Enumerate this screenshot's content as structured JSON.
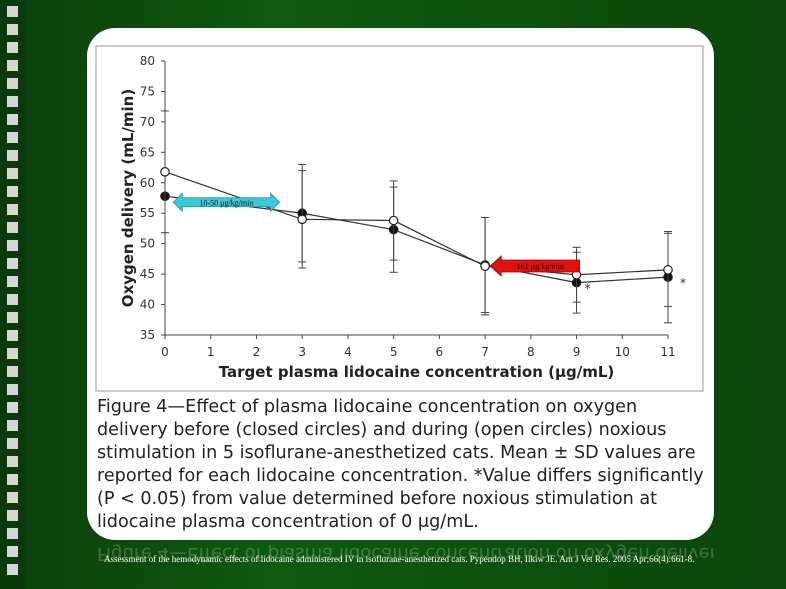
{
  "chart_data": {
    "type": "line",
    "xlabel": "Target plasma lidocaine concentration (μg/mL)",
    "ylabel": "Oxygen delivery (mL/min)",
    "xlim": [
      0,
      11
    ],
    "ylim": [
      35,
      80
    ],
    "x_ticks": [
      "0",
      "1",
      "2",
      "3",
      "4",
      "5",
      "6",
      "7",
      "8",
      "9",
      "10",
      "11"
    ],
    "y_ticks": [
      "35",
      "40",
      "45",
      "50",
      "55",
      "60",
      "65",
      "70",
      "75",
      "80"
    ],
    "x": [
      0,
      3,
      5,
      7,
      9,
      11
    ],
    "series": [
      {
        "name": "closed circles",
        "marker": "filled",
        "values": [
          57.8,
          55.0,
          52.3,
          46.5,
          43.6,
          44.5
        ],
        "error": [
          null,
          8.0,
          7.0,
          7.8,
          5.0,
          7.5
        ]
      },
      {
        "name": "open circles",
        "marker": "open",
        "values": [
          61.8,
          54.0,
          53.8,
          46.3,
          44.9,
          45.7
        ],
        "error": [
          10.0,
          8.0,
          6.5,
          8.0,
          4.5,
          6.0
        ]
      }
    ],
    "significance_markers": [
      {
        "x": 7,
        "label": "*"
      },
      {
        "x": 9,
        "label": "*"
      },
      {
        "x": 11,
        "label": "*"
      }
    ],
    "annotations": [
      {
        "text": "10-50 μg/kg/min",
        "color": "#3cc8d8",
        "style": "double-arrow",
        "x_from": 0.4,
        "x_to": 2.2,
        "y": 56.8
      },
      {
        "text": "161 μg/kg/min",
        "color": "#e01010",
        "style": "left-arrow",
        "x_from": 7.2,
        "x_to": 9.0,
        "y": 46.5
      }
    ]
  },
  "caption": "Figure 4—Effect of plasma lidocaine concentration on oxygen delivery before (closed circles) and during (open circles) noxious stimulation in 5 isoflurane-anesthetized cats. Mean ± SD values are reported for each lidocaine concentration. *Value differs significantly (P < 0.05) from value determined before noxious stimulation at lidocaine plasma concentration of 0 μg/mL.",
  "citation": "Assessment of the hemodynamic effects of lidocaine administered IV in isoflurane-anesthetized cats. Pypendop BH, Ilkiw JE. Am J Vet Res. 2005 Apr;66(4):661-8.",
  "theme": {
    "background": "#0f5a10",
    "card": "#ffffff",
    "strip_squares": "#d6d6d6"
  }
}
